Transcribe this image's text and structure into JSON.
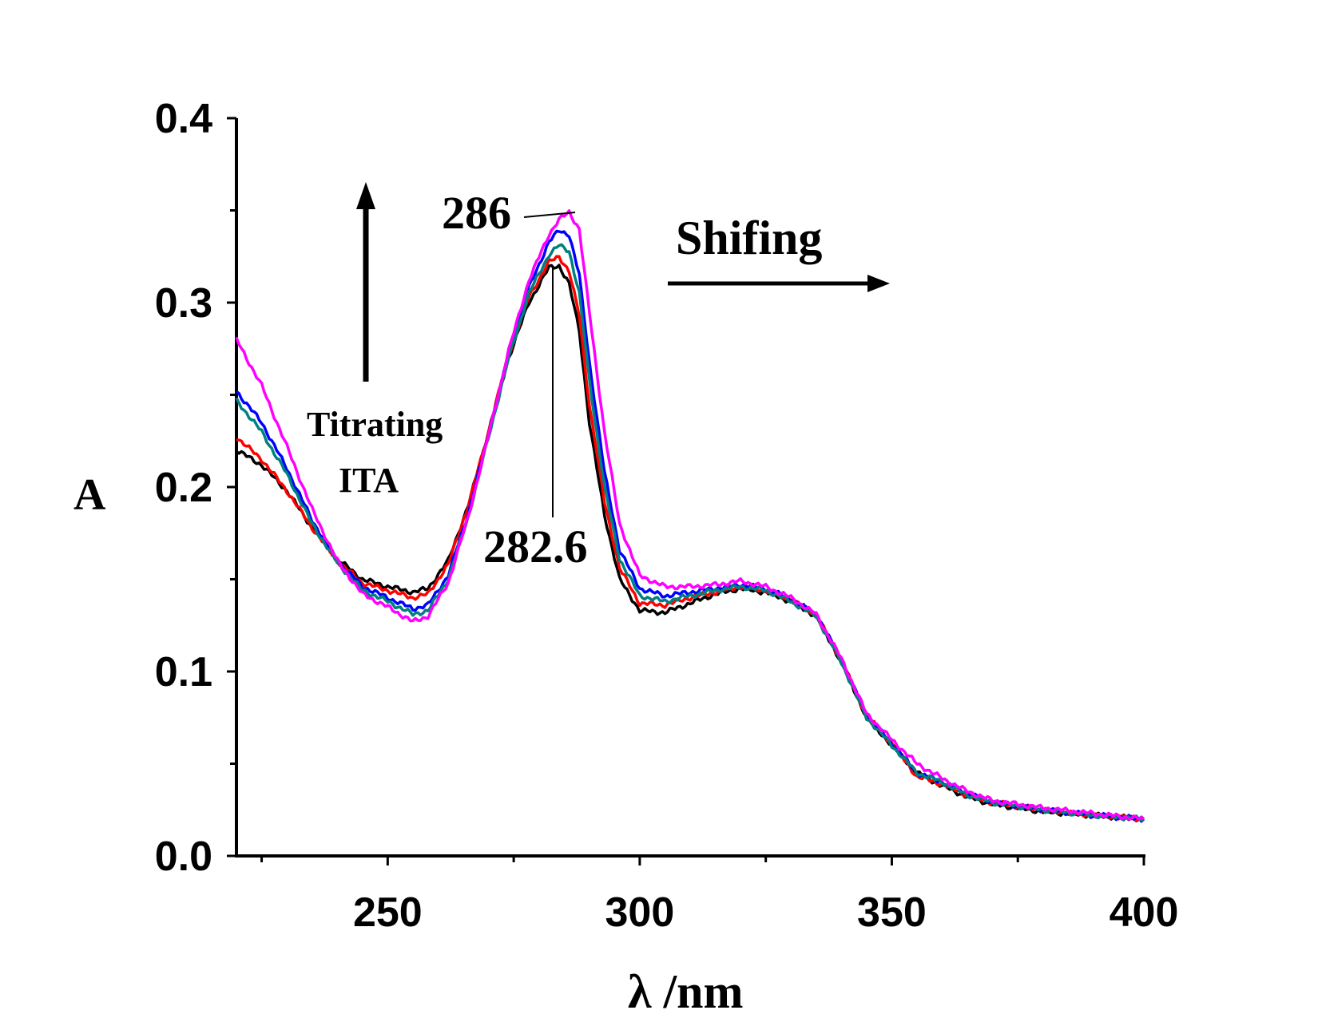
{
  "chart_data": {
    "type": "line",
    "title": "",
    "xlabel": "λ /nm",
    "ylabel": "A",
    "xlim": [
      220,
      400
    ],
    "ylim": [
      0.0,
      0.4
    ],
    "x_ticks": [
      250,
      300,
      350,
      400
    ],
    "y_ticks": [
      0.0,
      0.1,
      0.2,
      0.3,
      0.4
    ],
    "x_tick_labels": [
      "250",
      "300",
      "350",
      "400"
    ],
    "y_tick_labels": [
      "0.0",
      "0.1",
      "0.2",
      "0.3",
      "0.4"
    ],
    "grid": false,
    "legend": "none",
    "x": [
      220,
      225,
      230,
      235,
      240,
      245,
      250,
      255,
      258,
      262,
      266,
      270,
      274,
      278,
      282,
      284,
      286,
      288,
      290,
      293,
      296,
      300,
      305,
      310,
      315,
      320,
      325,
      330,
      335,
      340,
      345,
      350,
      355,
      360,
      365,
      370,
      380,
      390,
      400
    ],
    "series": [
      {
        "color": "#000000",
        "values": [
          0.22,
          0.212,
          0.198,
          0.178,
          0.161,
          0.15,
          0.146,
          0.143,
          0.145,
          0.16,
          0.19,
          0.23,
          0.27,
          0.3,
          0.319,
          0.32,
          0.31,
          0.285,
          0.235,
          0.185,
          0.15,
          0.133,
          0.132,
          0.137,
          0.142,
          0.145,
          0.143,
          0.138,
          0.13,
          0.105,
          0.075,
          0.06,
          0.045,
          0.038,
          0.032,
          0.028,
          0.024,
          0.022,
          0.02
        ]
      },
      {
        "color": "#ff0000",
        "values": [
          0.227,
          0.215,
          0.198,
          0.178,
          0.16,
          0.148,
          0.144,
          0.14,
          0.142,
          0.158,
          0.19,
          0.23,
          0.272,
          0.303,
          0.322,
          0.325,
          0.317,
          0.293,
          0.245,
          0.192,
          0.156,
          0.137,
          0.136,
          0.14,
          0.143,
          0.146,
          0.144,
          0.139,
          0.131,
          0.106,
          0.076,
          0.061,
          0.043,
          0.039,
          0.033,
          0.029,
          0.025,
          0.022,
          0.02
        ]
      },
      {
        "color": "#0000ff",
        "values": [
          0.252,
          0.235,
          0.21,
          0.182,
          0.16,
          0.146,
          0.14,
          0.134,
          0.136,
          0.152,
          0.186,
          0.228,
          0.272,
          0.308,
          0.333,
          0.339,
          0.337,
          0.315,
          0.268,
          0.208,
          0.166,
          0.145,
          0.141,
          0.143,
          0.145,
          0.147,
          0.145,
          0.139,
          0.131,
          0.106,
          0.076,
          0.061,
          0.045,
          0.04,
          0.034,
          0.029,
          0.025,
          0.022,
          0.02
        ]
      },
      {
        "color": "#008080",
        "values": [
          0.247,
          0.23,
          0.207,
          0.18,
          0.159,
          0.144,
          0.138,
          0.131,
          0.133,
          0.15,
          0.184,
          0.227,
          0.27,
          0.305,
          0.326,
          0.331,
          0.328,
          0.305,
          0.258,
          0.2,
          0.161,
          0.141,
          0.138,
          0.141,
          0.144,
          0.146,
          0.144,
          0.138,
          0.13,
          0.105,
          0.075,
          0.06,
          0.045,
          0.04,
          0.033,
          0.029,
          0.025,
          0.022,
          0.02
        ]
      },
      {
        "color": "#ff00ff",
        "values": [
          0.28,
          0.255,
          0.222,
          0.188,
          0.16,
          0.142,
          0.135,
          0.127,
          0.13,
          0.148,
          0.184,
          0.228,
          0.274,
          0.312,
          0.337,
          0.345,
          0.349,
          0.34,
          0.295,
          0.23,
          0.18,
          0.152,
          0.146,
          0.146,
          0.147,
          0.149,
          0.146,
          0.14,
          0.131,
          0.107,
          0.077,
          0.063,
          0.05,
          0.042,
          0.035,
          0.03,
          0.026,
          0.023,
          0.02
        ]
      }
    ],
    "annotations": {
      "peak_high": "286",
      "peak_low": "282.6",
      "shift_label": "Shifing",
      "titration_line1": "Titrating",
      "titration_line2": "ITA"
    }
  }
}
